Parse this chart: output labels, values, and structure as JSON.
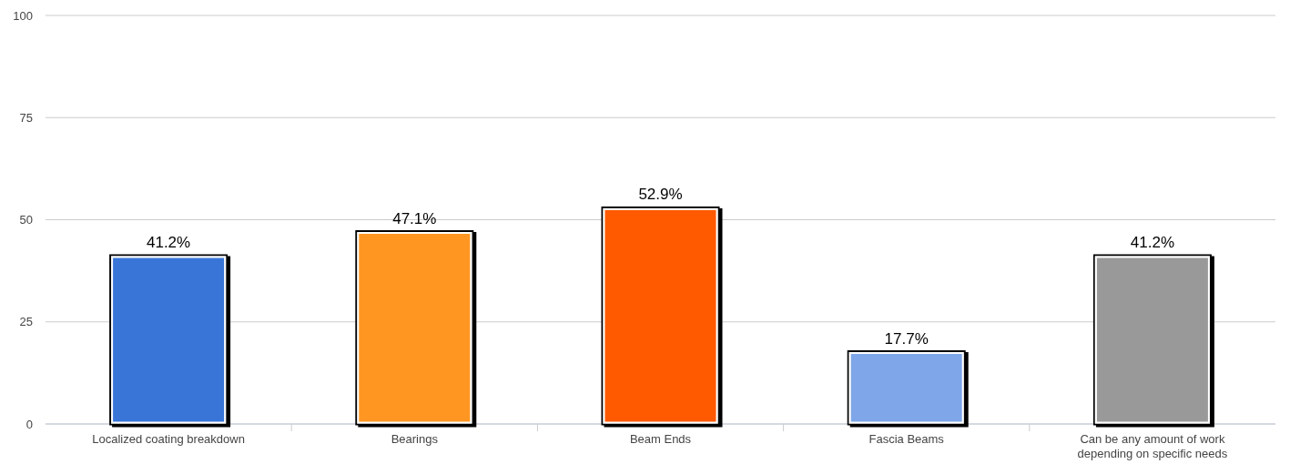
{
  "chart_data": {
    "type": "bar",
    "categories": [
      "Localized coating breakdown",
      "Bearings",
      "Beam Ends",
      "Fascia Beams",
      "Can be any amount of work depending on specific needs"
    ],
    "values": [
      41.2,
      47.1,
      52.9,
      17.7,
      41.2
    ],
    "colors": [
      "#3875d7",
      "#ff9620",
      "#ff5a05",
      "#7ea6e8",
      "#999999"
    ],
    "value_labels": [
      "41.2%",
      "47.1%",
      "52.9%",
      "17.7%",
      "41.2%"
    ],
    "ylim": [
      0,
      100
    ],
    "yticks": [
      0,
      25,
      50,
      75,
      100
    ],
    "grid": "y"
  }
}
